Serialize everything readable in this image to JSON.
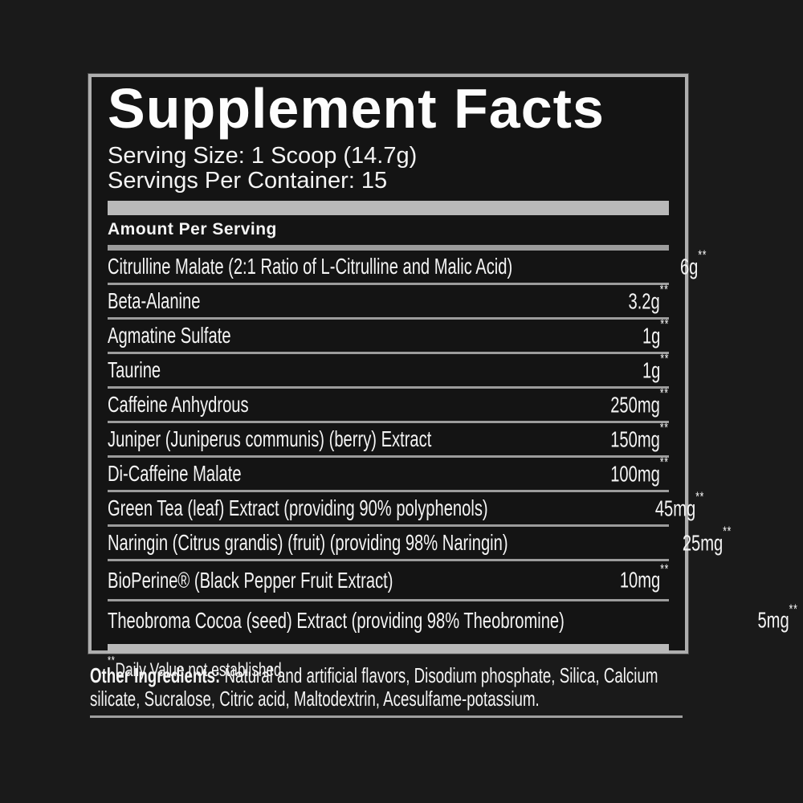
{
  "label": {
    "title": "Supplement Facts",
    "serving_size": "Serving Size: 1 Scoop (14.7g)",
    "servings_per_container": "Servings Per Container: 15",
    "amount_per_serving": "Amount Per Serving",
    "footnote_symbol": "**",
    "footnote": "Daily Value not established",
    "ingredients": [
      {
        "name": "Citrulline Malate (2:1 Ratio of L-Citrulline and Malic Acid)",
        "amount": "6g"
      },
      {
        "name": "Beta-Alanine",
        "amount": "3.2g"
      },
      {
        "name": "Agmatine Sulfate",
        "amount": "1g"
      },
      {
        "name": "Taurine",
        "amount": "1g"
      },
      {
        "name": "Caffeine Anhydrous",
        "amount": "250mg"
      },
      {
        "name": "Juniper (Juniperus communis) (berry) Extract",
        "amount": "150mg"
      },
      {
        "name": "Di-Caffeine Malate",
        "amount": "100mg"
      },
      {
        "name": "Green Tea (leaf) Extract (providing 90% polyphenols)",
        "amount": "45mg"
      },
      {
        "name": "Naringin (Citrus grandis) (fruit) (providing 98% Naringin)",
        "amount": "25mg"
      },
      {
        "name": "BioPerine® (Black Pepper Fruit Extract)",
        "amount": "10mg"
      },
      {
        "name": "Theobroma Cocoa (seed) Extract (providing 98% Theobromine)",
        "amount": "5mg"
      }
    ],
    "other_ingredients_label": "Other Ingredients:",
    "other_ingredients_text": " Natural and artificial flavors, Disodium phosphate, Silica, Calcium silicate, Sucralose, Citric acid, Maltodextrin, Acesulfame-potassium.",
    "colors": {
      "page_background": "#1a1a1a",
      "panel_background": "#141414",
      "border_gray": "#aeaeae",
      "bar_gray": "#b9b9b9",
      "rule_gray": "#9c9c9c",
      "text_white": "#f4f4f4"
    }
  }
}
